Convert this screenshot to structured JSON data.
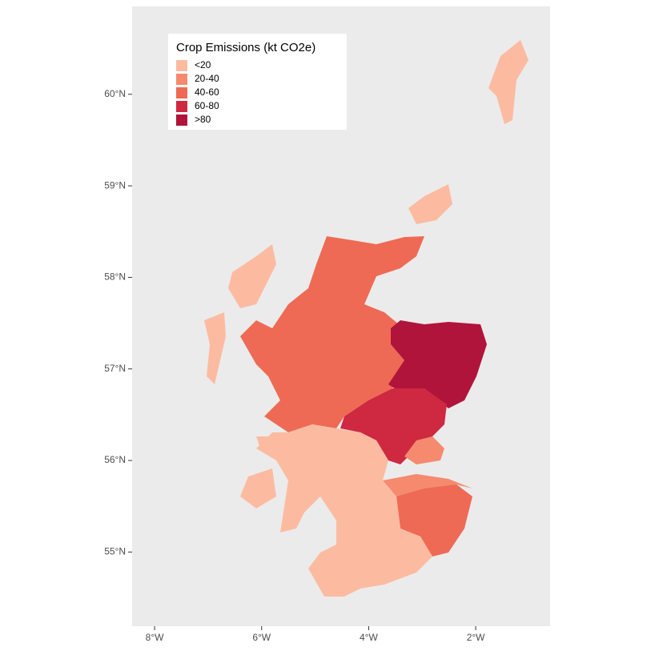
{
  "map": {
    "legend_title": "Crop Emissions (kt CO2e)",
    "legend": [
      {
        "label": "<20",
        "color": "#fcbba1"
      },
      {
        "label": "20-40",
        "color": "#f58a6e"
      },
      {
        "label": "40-60",
        "color": "#ee6a55"
      },
      {
        "label": "60-80",
        "color": "#cf2841"
      },
      {
        "label": ">80",
        "color": "#b0143a"
      }
    ],
    "panel_color": "#ebebeb",
    "xlim": [
      -8.42,
      -0.61
    ],
    "ylim": [
      54.19,
      60.96
    ],
    "xticks": [
      {
        "value": -8,
        "label": "8°W"
      },
      {
        "value": -6,
        "label": "6°W"
      },
      {
        "value": -4,
        "label": "4°W"
      },
      {
        "value": -2,
        "label": "2°W"
      }
    ],
    "yticks": [
      {
        "value": 55,
        "label": "55°N"
      },
      {
        "value": 56,
        "label": "56°N"
      },
      {
        "value": 57,
        "label": "57°N"
      },
      {
        "value": 58,
        "label": "58°N"
      },
      {
        "value": 59,
        "label": "59°N"
      },
      {
        "value": 60,
        "label": "60°N"
      }
    ]
  }
}
